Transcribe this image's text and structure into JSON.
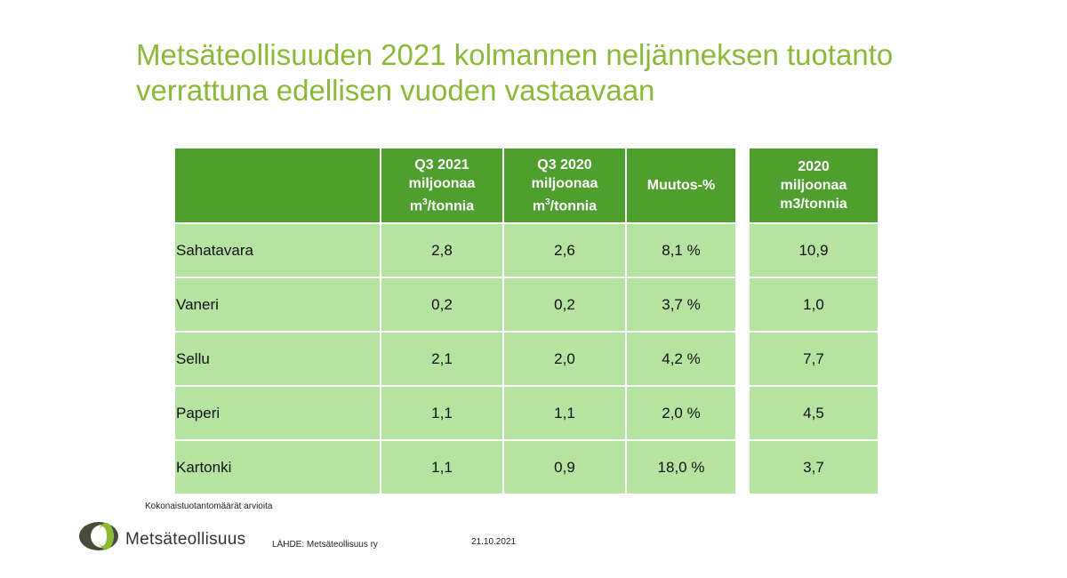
{
  "title": {
    "line1": "Metsäteollisuuden 2021 kolmannen neljänneksen tuotanto",
    "line2": "verrattuna edellisen vuoden vastaavaan"
  },
  "main_table": {
    "headers": [
      {
        "line1": "",
        "line2": "",
        "line3a": "",
        "line3sup": "",
        "line3b": ""
      },
      {
        "line1": "Q3 2021",
        "line2": "miljoonaa",
        "line3a": "m",
        "line3sup": "3",
        "line3b": "/tonnia"
      },
      {
        "line1": "Q3 2020",
        "line2": "miljoonaa",
        "line3a": "m",
        "line3sup": "3",
        "line3b": "/tonnia"
      },
      {
        "line1": "Muutos-%",
        "line2": "",
        "line3a": "",
        "line3sup": "",
        "line3b": ""
      }
    ],
    "rows": [
      [
        "Sahatavara",
        "2,8",
        "2,6",
        "8,1 %"
      ],
      [
        "Vaneri",
        "0,2",
        "0,2",
        "3,7 %"
      ],
      [
        "Sellu",
        "2,1",
        "2,0",
        "4,2 %"
      ],
      [
        "Paperi",
        "1,1",
        "1,1",
        "2,0 %"
      ],
      [
        "Kartonki",
        "1,1",
        "0,9",
        "18,0 %"
      ]
    ]
  },
  "side_table": {
    "header": {
      "line1": "2020",
      "line2": "miljoonaa",
      "line3": "m3/tonnia"
    },
    "values": [
      "10,9",
      "1,0",
      "7,7",
      "4,5",
      "3,7"
    ]
  },
  "footer": {
    "note": "Kokonaistuotantomäärät arvioita",
    "brand": "Metsäteollisuus",
    "source": "LÄHDE: Metsäteollisuus ry",
    "date": "21.10.2021"
  },
  "colors": {
    "title": "#8cb83a",
    "header_bg": "#4f9f2f",
    "cell_bg": "#b5e3a0",
    "logo_dark": "#4a4a3a",
    "logo_green": "#8cb83a"
  }
}
